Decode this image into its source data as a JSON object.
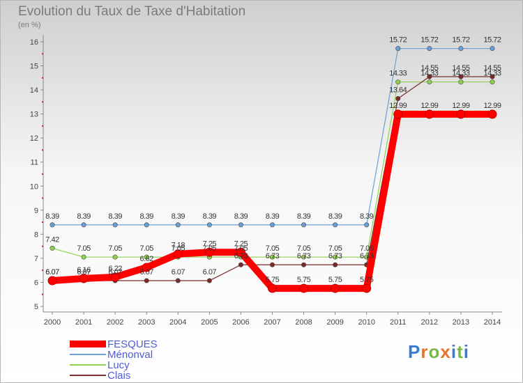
{
  "header": {
    "title": "Evolution du Taux de Taxe d'Habitation",
    "subtitle": "(en %)"
  },
  "logo": {
    "text": "Proxiti",
    "letter_colors": [
      "#3a7bd5",
      "#e8732a",
      "#7ab648",
      "#e8732a",
      "#3a7bd5",
      "#7ab648",
      "#3a7bd5"
    ]
  },
  "chart_data": {
    "type": "line",
    "title": "Evolution du Taux de Taxe d'Habitation",
    "ylabel": "(en %)",
    "xlabel": "",
    "x": [
      "2000",
      "2001",
      "2002",
      "2003",
      "2004",
      "2005",
      "2006",
      "2007",
      "2008",
      "2009",
      "2010",
      "2011",
      "2012",
      "2013",
      "2014"
    ],
    "yticks": [
      "5",
      "6",
      "7",
      "8",
      "9",
      "10",
      "11",
      "12",
      "13",
      "14",
      "15",
      "16"
    ],
    "ylim": [
      5,
      16
    ],
    "grid": false,
    "legend_position": "bottom-left",
    "series": [
      {
        "name": "FESQUES",
        "color": "#ff0000",
        "values": [
          6.07,
          6.16,
          6.22,
          6.62,
          7.18,
          7.25,
          7.25,
          5.75,
          5.75,
          5.75,
          5.75,
          12.99,
          12.99,
          12.99,
          12.99
        ],
        "labels": [
          "6.07",
          "6.16",
          "6.22",
          "6.62",
          "7.18",
          "7.25",
          "7.25",
          "5.75",
          "5.75",
          "5.75",
          "5.75",
          "12.99",
          "12.99",
          "12.99",
          "12.99"
        ]
      },
      {
        "name": "Ménonval",
        "color": "#6a9fd4",
        "values": [
          8.39,
          8.39,
          8.39,
          8.39,
          8.39,
          8.39,
          8.39,
          8.39,
          8.39,
          8.39,
          8.39,
          15.72,
          15.72,
          15.72,
          15.72
        ],
        "labels": [
          "8.39",
          "8.39",
          "8.39",
          "8.39",
          "8.39",
          "8.39",
          "8.39",
          "8.39",
          "8.39",
          "8.39",
          "8.39",
          "15.72",
          "15.72",
          "15.72",
          "15.72"
        ]
      },
      {
        "name": "Lucy",
        "color": "#8fd14f",
        "values": [
          7.42,
          7.05,
          7.05,
          7.05,
          7.05,
          7.05,
          7.05,
          7.05,
          7.05,
          7.05,
          7.05,
          14.33,
          14.33,
          14.33,
          14.33
        ],
        "labels": [
          "7.42",
          "7.05",
          "7.05",
          "7.05",
          "7.05",
          "7.05",
          "7.05",
          "7.05",
          "7.05",
          "7.05",
          "7.05",
          "14.33",
          "14.33",
          "14.33",
          "14.33"
        ]
      },
      {
        "name": "Clais",
        "color": "#7a2a2a",
        "values": [
          6.07,
          6.07,
          6.07,
          6.07,
          6.07,
          6.07,
          6.73,
          6.73,
          6.73,
          6.73,
          6.73,
          13.64,
          14.55,
          14.55,
          14.55
        ],
        "labels": [
          "6.07",
          "6.07",
          "6.07",
          "6.07",
          "6.07",
          "6.07",
          "6.73",
          "6.73",
          "6.73",
          "6.73",
          "6.73",
          "13.64",
          "14.55",
          "14.55",
          "14.55"
        ]
      }
    ]
  }
}
